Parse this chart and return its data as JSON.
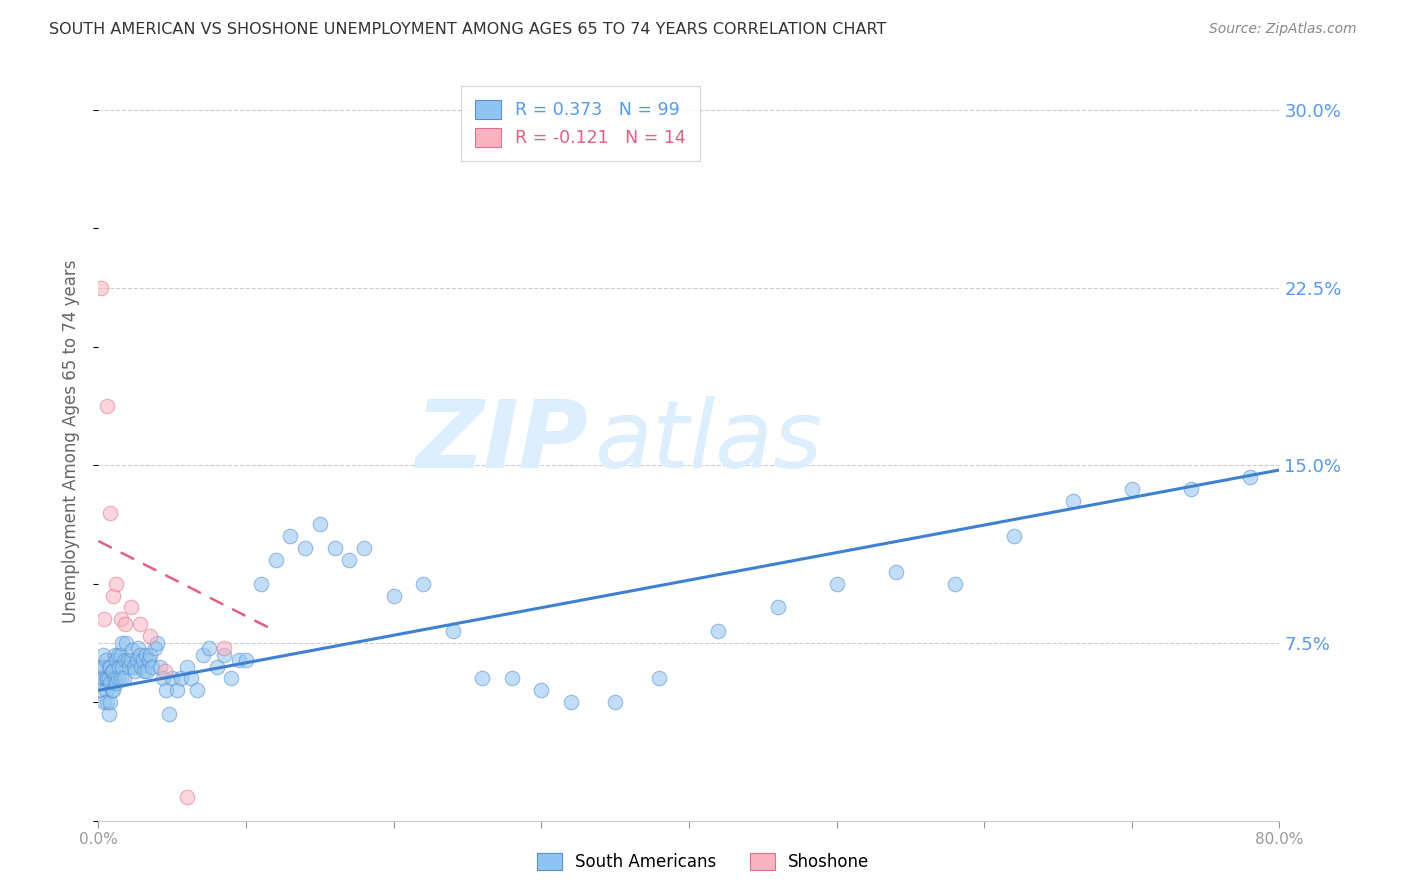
{
  "title": "SOUTH AMERICAN VS SHOSHONE UNEMPLOYMENT AMONG AGES 65 TO 74 YEARS CORRELATION CHART",
  "source": "Source: ZipAtlas.com",
  "ylabel": "Unemployment Among Ages 65 to 74 years",
  "xlim": [
    0.0,
    0.8
  ],
  "ylim": [
    0.0,
    0.32
  ],
  "xticks": [
    0.0,
    0.1,
    0.2,
    0.3,
    0.4,
    0.5,
    0.6,
    0.7,
    0.8
  ],
  "xticklabels": [
    "0.0%",
    "",
    "",
    "",
    "",
    "",
    "",
    "",
    "80.0%"
  ],
  "yticks_right": [
    0.075,
    0.15,
    0.225,
    0.3
  ],
  "yticklabels_right": [
    "7.5%",
    "15.0%",
    "22.5%",
    "30.0%"
  ],
  "grid_yticks": [
    0.3,
    0.225,
    0.15,
    0.075
  ],
  "watermark_zip": "ZIP",
  "watermark_atlas": "atlas",
  "legend_entries": [
    {
      "label": "R = 0.373   N = 99",
      "color": "#6aaee8"
    },
    {
      "label": "R = -0.121   N = 14",
      "color": "#f4a0b0"
    }
  ],
  "south_american_color": "#90c4f0",
  "shoshone_color": "#f8b4c0",
  "south_american_edge": "#5590d0",
  "shoshone_edge": "#e07090",
  "regression_line_sa_color": "#4080d0",
  "regression_line_sh_color": "#e06080",
  "sa_R": 0.373,
  "sa_N": 99,
  "sh_R": -0.121,
  "sh_N": 14,
  "south_american_x": [
    0.001,
    0.002,
    0.002,
    0.003,
    0.003,
    0.004,
    0.004,
    0.005,
    0.005,
    0.005,
    0.006,
    0.006,
    0.007,
    0.007,
    0.007,
    0.008,
    0.008,
    0.008,
    0.009,
    0.009,
    0.01,
    0.01,
    0.011,
    0.011,
    0.012,
    0.012,
    0.013,
    0.013,
    0.014,
    0.015,
    0.015,
    0.016,
    0.016,
    0.017,
    0.018,
    0.019,
    0.02,
    0.021,
    0.022,
    0.023,
    0.024,
    0.025,
    0.026,
    0.027,
    0.028,
    0.029,
    0.03,
    0.031,
    0.032,
    0.033,
    0.034,
    0.035,
    0.036,
    0.038,
    0.04,
    0.042,
    0.044,
    0.046,
    0.048,
    0.05,
    0.053,
    0.056,
    0.06,
    0.063,
    0.067,
    0.071,
    0.075,
    0.08,
    0.085,
    0.09,
    0.095,
    0.1,
    0.11,
    0.12,
    0.13,
    0.14,
    0.15,
    0.16,
    0.17,
    0.18,
    0.2,
    0.22,
    0.24,
    0.26,
    0.28,
    0.3,
    0.32,
    0.35,
    0.38,
    0.42,
    0.46,
    0.5,
    0.54,
    0.58,
    0.62,
    0.66,
    0.7,
    0.74,
    0.78
  ],
  "south_american_y": [
    0.06,
    0.055,
    0.065,
    0.06,
    0.07,
    0.05,
    0.065,
    0.055,
    0.06,
    0.068,
    0.05,
    0.06,
    0.045,
    0.06,
    0.065,
    0.05,
    0.058,
    0.065,
    0.055,
    0.063,
    0.055,
    0.063,
    0.06,
    0.07,
    0.058,
    0.068,
    0.06,
    0.07,
    0.065,
    0.06,
    0.07,
    0.065,
    0.075,
    0.06,
    0.068,
    0.075,
    0.068,
    0.065,
    0.068,
    0.072,
    0.065,
    0.063,
    0.068,
    0.073,
    0.07,
    0.065,
    0.068,
    0.063,
    0.07,
    0.063,
    0.068,
    0.07,
    0.065,
    0.073,
    0.075,
    0.065,
    0.06,
    0.055,
    0.045,
    0.06,
    0.055,
    0.06,
    0.065,
    0.06,
    0.055,
    0.07,
    0.073,
    0.065,
    0.07,
    0.06,
    0.068,
    0.068,
    0.1,
    0.11,
    0.12,
    0.115,
    0.125,
    0.115,
    0.11,
    0.115,
    0.095,
    0.1,
    0.08,
    0.06,
    0.06,
    0.055,
    0.05,
    0.05,
    0.06,
    0.08,
    0.09,
    0.1,
    0.105,
    0.1,
    0.12,
    0.135,
    0.14,
    0.14,
    0.145
  ],
  "shoshone_x": [
    0.002,
    0.004,
    0.006,
    0.008,
    0.01,
    0.012,
    0.015,
    0.018,
    0.022,
    0.028,
    0.035,
    0.045,
    0.06,
    0.085
  ],
  "shoshone_y": [
    0.225,
    0.085,
    0.175,
    0.13,
    0.095,
    0.1,
    0.085,
    0.083,
    0.09,
    0.083,
    0.078,
    0.063,
    0.01,
    0.073
  ],
  "sa_line_x": [
    0.0,
    0.8
  ],
  "sa_line_y": [
    0.055,
    0.148
  ],
  "sh_line_x": [
    0.0,
    0.12
  ],
  "sh_line_y": [
    0.118,
    0.08
  ],
  "background_color": "#ffffff",
  "plot_bg_color": "#ffffff",
  "title_color": "#333333",
  "right_tick_color": "#5599ee",
  "watermark_color": "#ddeeff",
  "scatter_alpha": 0.55,
  "scatter_size": 110
}
